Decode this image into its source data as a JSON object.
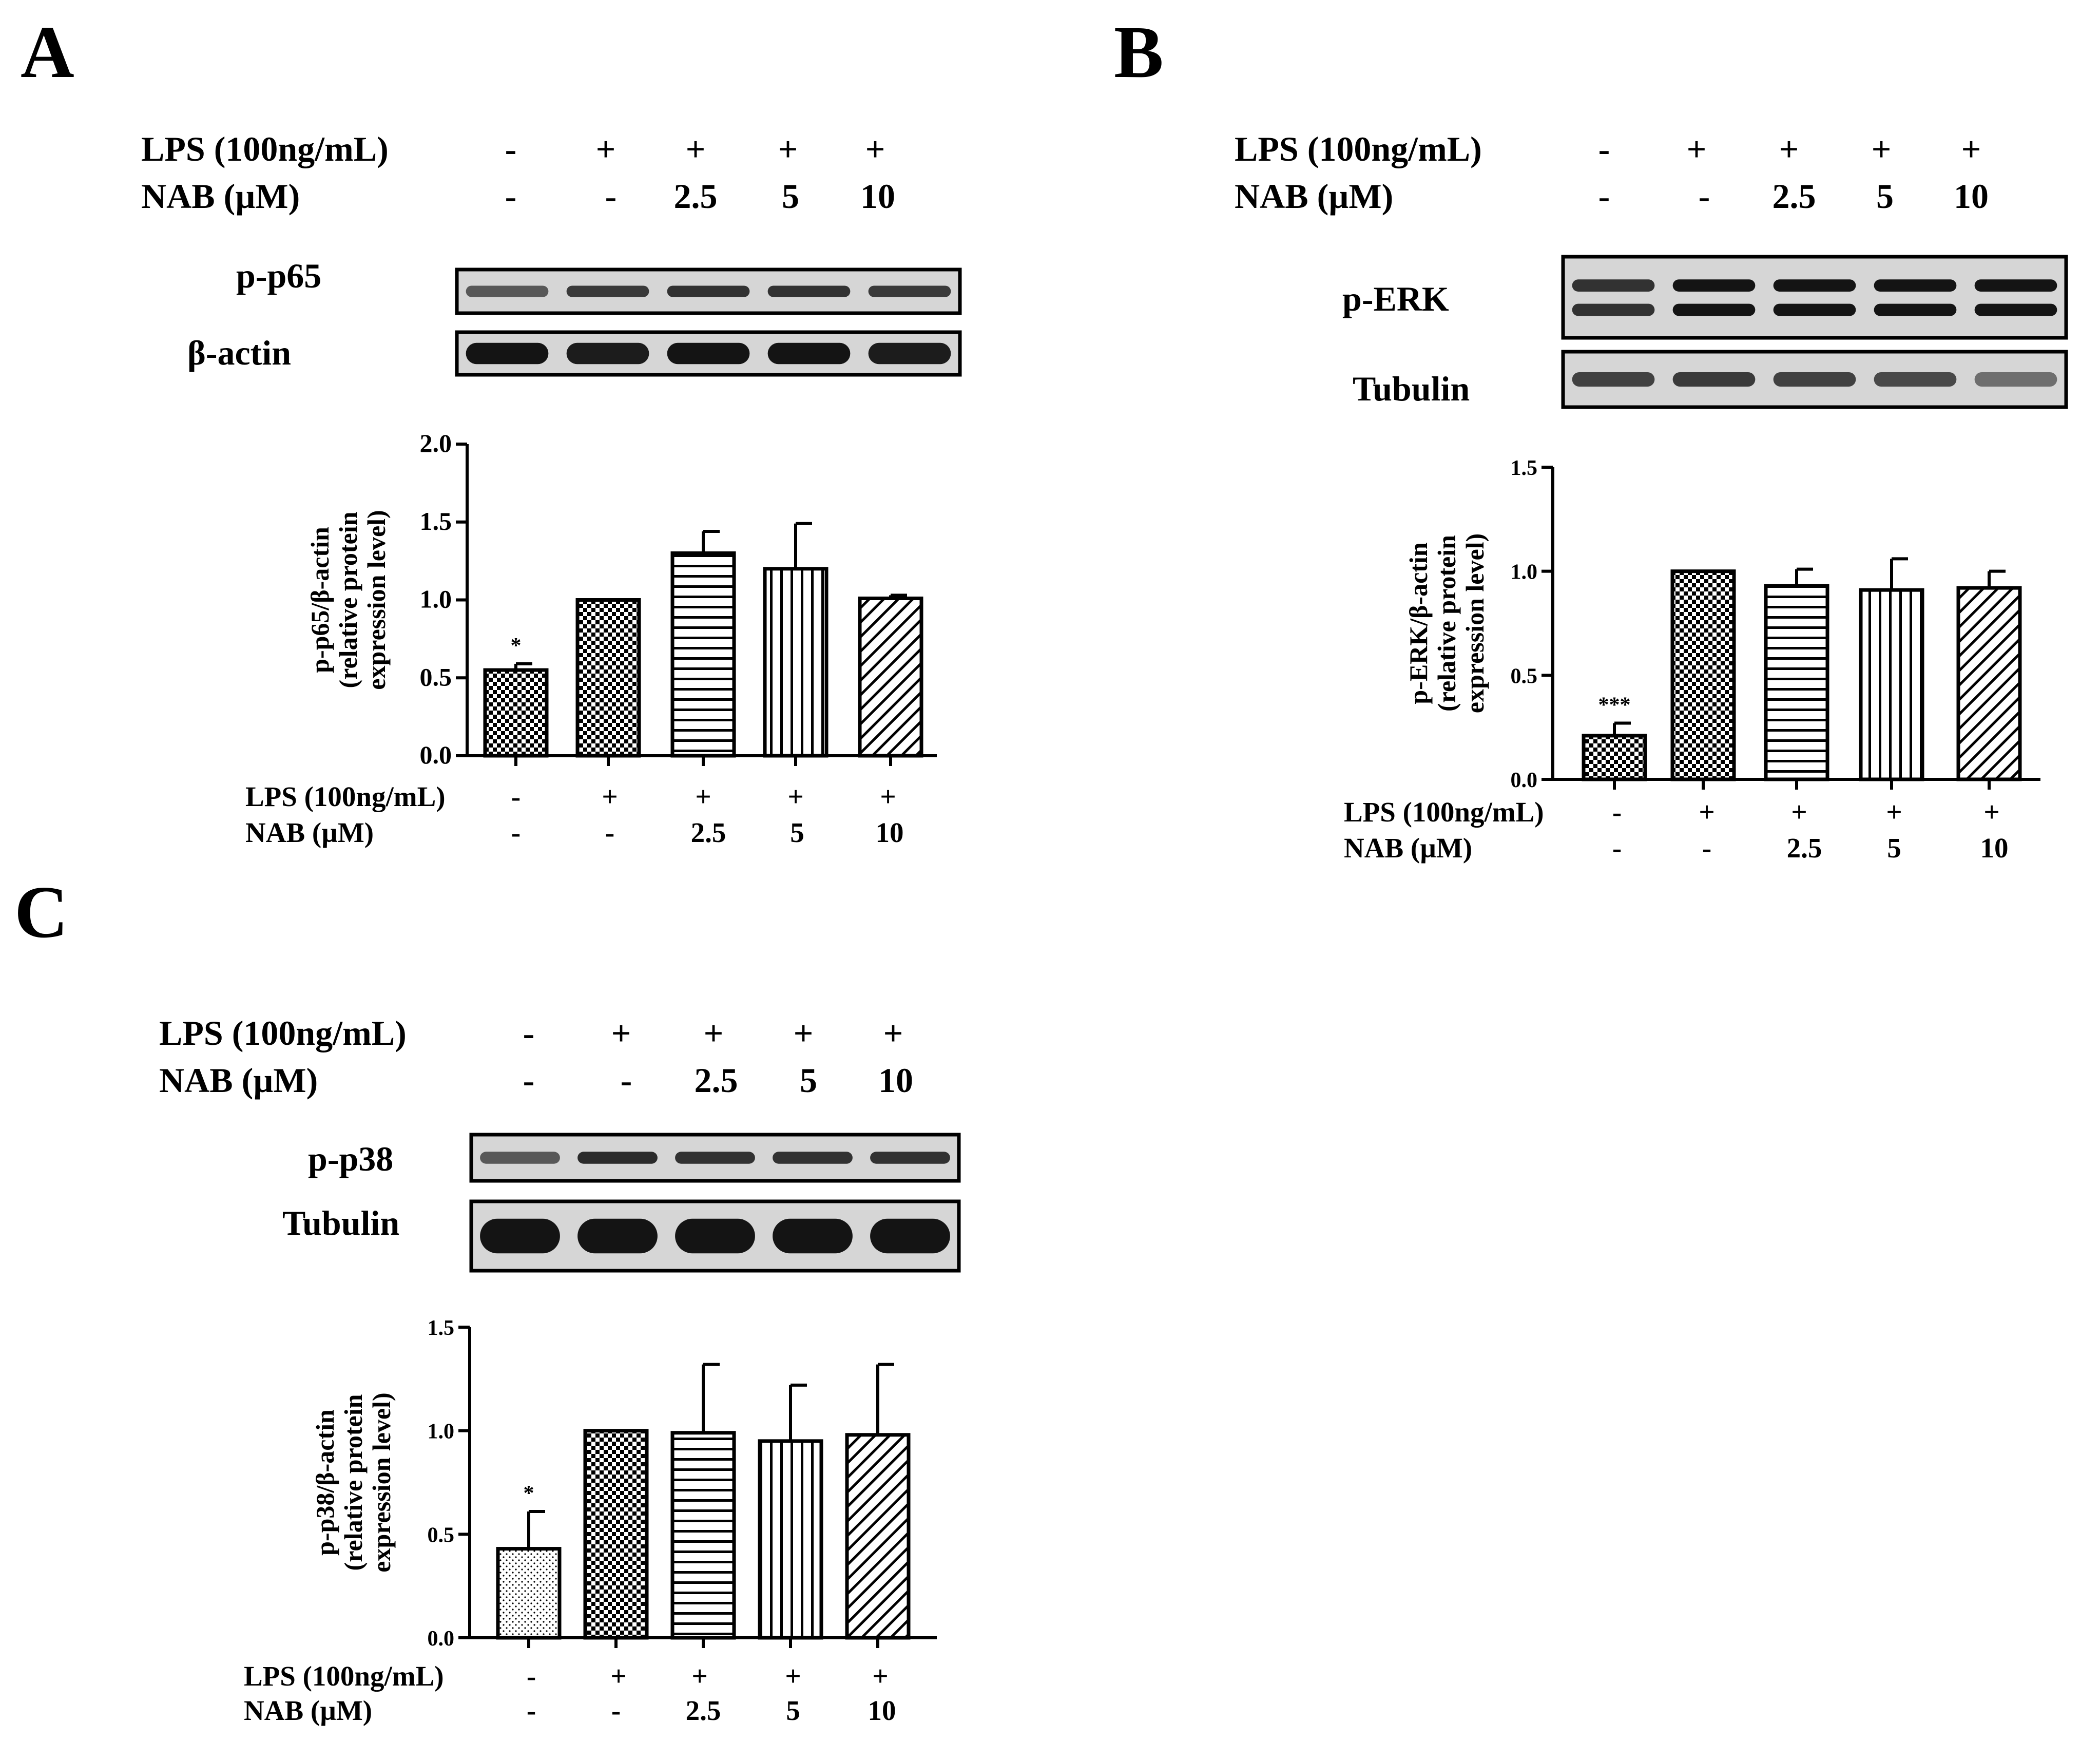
{
  "panels": [
    {
      "letter": "A",
      "header": {
        "row1_label": "LPS (100ng/mL)",
        "row1_values": [
          "-",
          "+",
          "+",
          "+",
          "+"
        ],
        "row2_label": "NAB (µM)",
        "row2_values": [
          "-",
          "-",
          "2.5",
          "5",
          "10"
        ]
      },
      "blots": [
        {
          "label": "p-p65",
          "band_style": "single-faint",
          "intensities": [
            0.55,
            0.75,
            0.8,
            0.8,
            0.75
          ]
        },
        {
          "label": "β-actin",
          "band_style": "single-thick",
          "intensities": [
            1,
            0.95,
            1,
            1,
            0.95
          ]
        }
      ],
      "footer": {
        "row1_label": "LPS (100ng/mL)",
        "row1_values": [
          "-",
          "+",
          "+",
          "+",
          "+"
        ],
        "row2_label": "NAB (µM)",
        "row2_values": [
          "-",
          "-",
          "2.5",
          "5",
          "10"
        ]
      }
    },
    {
      "letter": "B",
      "header": {
        "row1_label": "LPS (100ng/mL)",
        "row1_values": [
          "-",
          "+",
          "+",
          "+",
          "+"
        ],
        "row2_label": "NAB (µM)",
        "row2_values": [
          "-",
          "-",
          "2.5",
          "5",
          "10"
        ]
      },
      "blots": [
        {
          "label": "p-ERK",
          "band_style": "double",
          "intensities": [
            0.8,
            1,
            1,
            1,
            1
          ]
        },
        {
          "label": "Tubulin",
          "band_style": "single-faint",
          "intensities": [
            0.7,
            0.75,
            0.7,
            0.65,
            0.4
          ]
        }
      ],
      "footer": {
        "row1_label": "LPS (100ng/mL)",
        "row1_values": [
          "-",
          "+",
          "+",
          "+",
          "+"
        ],
        "row2_label": "NAB (µM)",
        "row2_values": [
          "-",
          "-",
          "2.5",
          "5",
          "10"
        ]
      }
    },
    {
      "letter": "C",
      "header": {
        "row1_label": "LPS (100ng/mL)",
        "row1_values": [
          "-",
          "+",
          "+",
          "+",
          "+"
        ],
        "row2_label": "NAB (µM)",
        "row2_values": [
          "-",
          "-",
          "2.5",
          "5",
          "10"
        ]
      },
      "blots": [
        {
          "label": "p-p38",
          "band_style": "single-faint",
          "intensities": [
            0.55,
            0.85,
            0.8,
            0.8,
            0.8
          ]
        },
        {
          "label": "Tubulin",
          "band_style": "single-thick",
          "intensities": [
            1,
            1,
            1,
            1,
            1
          ]
        }
      ],
      "footer": {
        "row1_label": "LPS (100ng/mL)",
        "row1_values": [
          "-",
          "+",
          "+",
          "+",
          "+"
        ],
        "row2_label": "NAB (µM)",
        "row2_values": [
          "-",
          "-",
          "2.5",
          "5",
          "10"
        ]
      }
    }
  ],
  "chart_data": [
    {
      "type": "bar",
      "panel": "A",
      "ylabel_lines": [
        "p-p65/β-actin",
        "(relative protein",
        "expression level)"
      ],
      "ylim": [
        0,
        2.0
      ],
      "yticks": [
        0.0,
        0.5,
        1.0,
        1.5,
        2.0
      ],
      "ytick_labels": [
        "0.0",
        "0.5",
        "1.0",
        "1.5",
        "2.0"
      ],
      "categories": [
        "-/-",
        "+/-",
        "+/2.5",
        "+/5",
        "+/10"
      ],
      "values": [
        0.55,
        1.0,
        1.3,
        1.2,
        1.01
      ],
      "errors": [
        0.04,
        0.0,
        0.14,
        0.29,
        0.02
      ],
      "patterns": [
        "checker",
        "checker",
        "hlines",
        "vlines",
        "diag"
      ],
      "annotations": [
        "*",
        "",
        "",
        "",
        ""
      ]
    },
    {
      "type": "bar",
      "panel": "B",
      "ylabel_lines": [
        "p-ERK/β-actin",
        "(relative protein",
        "expression level)"
      ],
      "ylim": [
        0,
        1.5
      ],
      "yticks": [
        0.0,
        0.5,
        1.0,
        1.5
      ],
      "ytick_labels": [
        "0.0",
        "0.5",
        "1.0",
        "1.5"
      ],
      "categories": [
        "-/-",
        "+/-",
        "+/2.5",
        "+/5",
        "+/10"
      ],
      "values": [
        0.21,
        1.0,
        0.93,
        0.91,
        0.92
      ],
      "errors": [
        0.06,
        0.0,
        0.08,
        0.15,
        0.08
      ],
      "patterns": [
        "checker",
        "checker",
        "hlines",
        "vlines",
        "diag"
      ],
      "annotations": [
        "***",
        "",
        "",
        "",
        ""
      ]
    },
    {
      "type": "bar",
      "panel": "C",
      "ylabel_lines": [
        "p-p38/β-actin",
        "(relative protein",
        "expression level)"
      ],
      "ylim": [
        0,
        1.5
      ],
      "yticks": [
        0.0,
        0.5,
        1.0,
        1.5
      ],
      "ytick_labels": [
        "0.0",
        "0.5",
        "1.0",
        "1.5"
      ],
      "categories": [
        "-/-",
        "+/-",
        "+/2.5",
        "+/5",
        "+/10"
      ],
      "values": [
        0.43,
        1.0,
        0.99,
        0.95,
        0.98
      ],
      "errors": [
        0.18,
        0.0,
        0.33,
        0.27,
        0.34
      ],
      "patterns": [
        "dots",
        "checker",
        "hlines",
        "vlines",
        "diag"
      ],
      "annotations": [
        "*",
        "",
        "",
        "",
        ""
      ]
    }
  ]
}
